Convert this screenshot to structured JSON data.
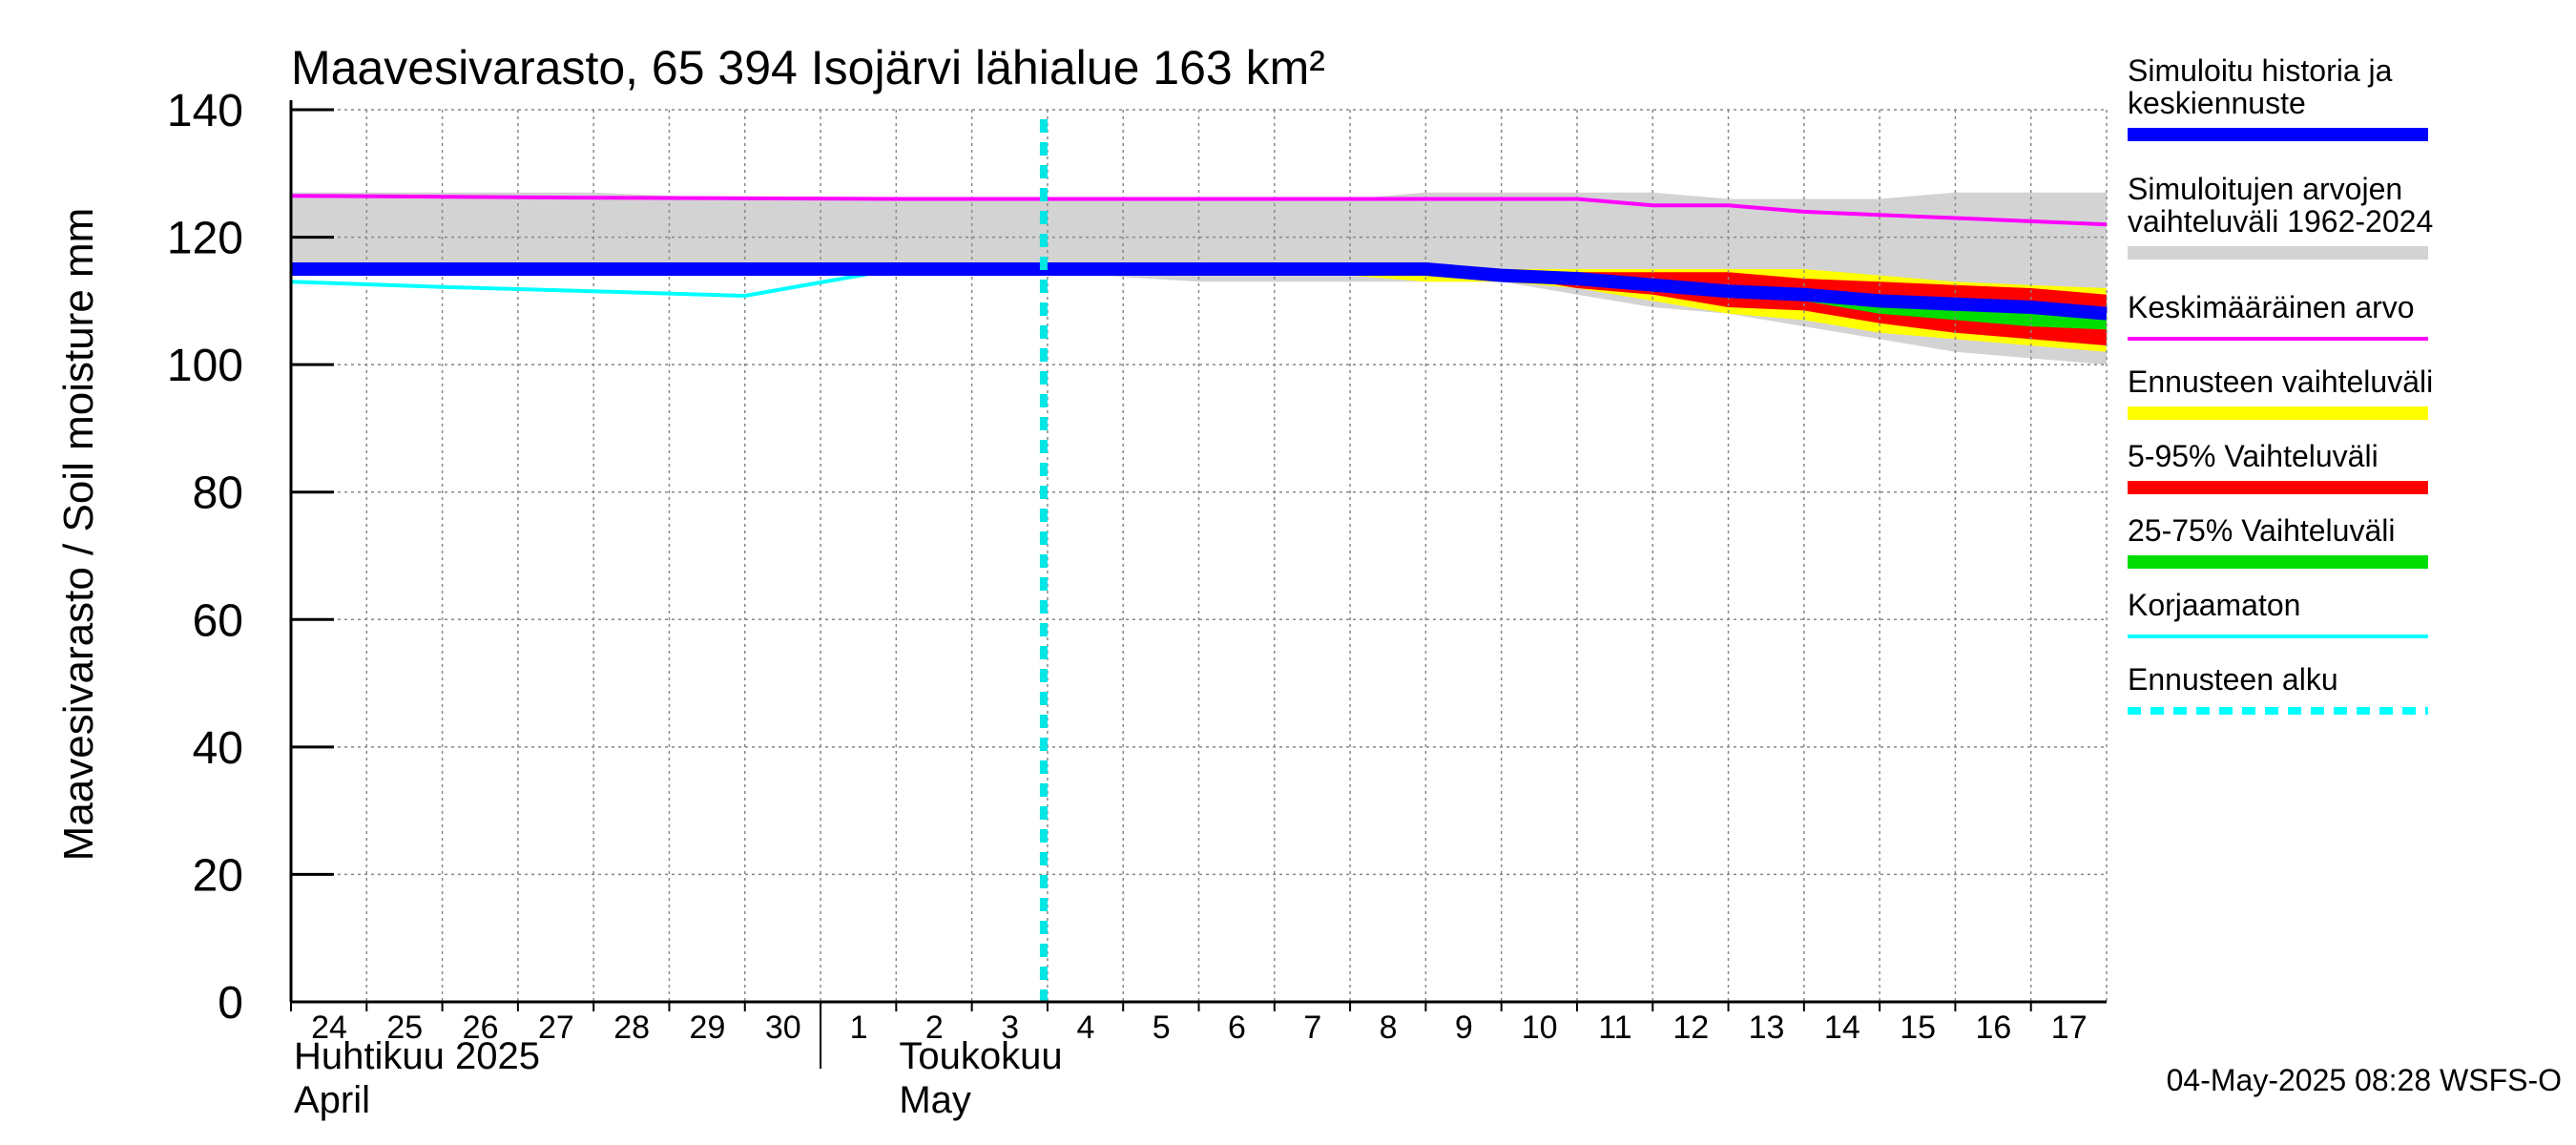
{
  "chart_data": {
    "type": "area",
    "title": "Maavesivarasto, 65 394 Isojärvi lähialue 163 km²",
    "ylabel": "Maavesivarasto / Soil moisture   mm",
    "ylim": [
      0,
      140
    ],
    "yticks": [
      0,
      20,
      40,
      60,
      80,
      100,
      120,
      140
    ],
    "xlim": [
      0,
      24
    ],
    "x_ticks": [
      {
        "x": 0,
        "label": "24"
      },
      {
        "x": 1,
        "label": "25"
      },
      {
        "x": 2,
        "label": "26"
      },
      {
        "x": 3,
        "label": "27"
      },
      {
        "x": 4,
        "label": "28"
      },
      {
        "x": 5,
        "label": "29"
      },
      {
        "x": 6,
        "label": "30"
      },
      {
        "x": 7,
        "label": "1"
      },
      {
        "x": 8,
        "label": "2"
      },
      {
        "x": 9,
        "label": "3"
      },
      {
        "x": 10,
        "label": "4"
      },
      {
        "x": 11,
        "label": "5"
      },
      {
        "x": 12,
        "label": "6"
      },
      {
        "x": 13,
        "label": "7"
      },
      {
        "x": 14,
        "label": "8"
      },
      {
        "x": 15,
        "label": "9"
      },
      {
        "x": 16,
        "label": "10"
      },
      {
        "x": 17,
        "label": "11"
      },
      {
        "x": 18,
        "label": "12"
      },
      {
        "x": 19,
        "label": "13"
      },
      {
        "x": 20,
        "label": "14"
      },
      {
        "x": 21,
        "label": "15"
      },
      {
        "x": 22,
        "label": "16"
      },
      {
        "x": 23,
        "label": "17"
      }
    ],
    "month_boundary_x": 7,
    "month_labels": [
      {
        "x": 0,
        "fi": "Huhtikuu  2025",
        "en": "April"
      },
      {
        "x": 8,
        "fi": "Toukokuu",
        "en": "May"
      }
    ],
    "forecast_start_x": 10,
    "grid": true,
    "series": [
      {
        "name": "Simuloitujen arvojen vaihteluväli 1962-2024",
        "role": "band",
        "color": "#d3d3d3",
        "x": [
          0,
          2,
          4,
          6,
          8,
          10,
          12,
          14,
          15,
          16,
          17,
          18,
          19,
          20,
          21,
          22,
          23,
          24
        ],
        "lower": [
          115,
          115,
          115,
          115,
          114.5,
          114.5,
          113,
          113,
          113,
          113,
          111,
          109,
          108,
          106,
          104,
          102,
          101,
          100
        ],
        "upper": [
          127,
          127,
          127,
          126,
          126,
          126,
          126,
          126,
          127,
          127,
          127,
          127,
          126,
          126,
          126,
          127,
          127,
          127
        ]
      },
      {
        "name": "Ennusteen vaihteluväli",
        "role": "band",
        "color": "#ffff00",
        "x": [
          10,
          12,
          14,
          15,
          16,
          17,
          18,
          19,
          20,
          21,
          22,
          23,
          24
        ],
        "lower": [
          115,
          114.5,
          114,
          113,
          113,
          112,
          110,
          108,
          107,
          105,
          104,
          103,
          102
        ],
        "upper": [
          115,
          115,
          115,
          115,
          115,
          115,
          115,
          115,
          115,
          114,
          113,
          112.5,
          112
        ]
      },
      {
        "name": "5-95% Vaihteluväli",
        "role": "band",
        "color": "#ff0000",
        "x": [
          10,
          12,
          14,
          15,
          16,
          17,
          18,
          19,
          20,
          21,
          22,
          23,
          24
        ],
        "lower": [
          115,
          115,
          115,
          114.5,
          114,
          112,
          111,
          109,
          108.5,
          106.5,
          105,
          104,
          103
        ],
        "upper": [
          115,
          115,
          115,
          115,
          114.5,
          114.5,
          114.5,
          114.5,
          113.5,
          113,
          112.5,
          112,
          111
        ]
      },
      {
        "name": "25-75% Vaihteluväli",
        "role": "band",
        "color": "#00dd00",
        "x": [
          10,
          12,
          14,
          15,
          16,
          17,
          18,
          19,
          20,
          21,
          22,
          23,
          24
        ],
        "lower": [
          115,
          115,
          115,
          114.5,
          114,
          113,
          112,
          111,
          110,
          108,
          107,
          106,
          105.5
        ],
        "upper": [
          115,
          115,
          115,
          115,
          114.5,
          114,
          113.5,
          112.5,
          111.5,
          110.5,
          110,
          109,
          108
        ]
      },
      {
        "name": "Keskimääräinen arvo",
        "role": "line",
        "color": "#ff00ff",
        "width": 4,
        "x": [
          0,
          4,
          8,
          12,
          16,
          17,
          18,
          19,
          20,
          21,
          22,
          23,
          24
        ],
        "y": [
          126.5,
          126.2,
          126,
          126,
          126,
          126,
          125,
          125,
          124,
          123.5,
          123,
          122.5,
          122
        ]
      },
      {
        "name": "Korjaamaton",
        "role": "line",
        "color": "#00ffff",
        "width": 4,
        "x": [
          0,
          2,
          4,
          6,
          8,
          10,
          12,
          14,
          15
        ],
        "y": [
          113,
          112.2,
          111.5,
          110.8,
          115,
          115.3,
          115.3,
          115.3,
          115.3
        ]
      },
      {
        "name": "Simuloitu historia ja keskiennuste",
        "role": "line",
        "color": "#0000ff",
        "width": 14,
        "x": [
          0,
          2,
          4,
          6,
          8,
          10,
          12,
          14,
          15,
          16,
          17,
          18,
          19,
          20,
          21,
          22,
          23,
          24
        ],
        "y": [
          115,
          115,
          115,
          115,
          115,
          115,
          115,
          115,
          115,
          114,
          113.5,
          112.5,
          111.5,
          111,
          110,
          109.5,
          109,
          108
        ]
      }
    ],
    "legend": [
      {
        "label": "Simuloitu historia ja\nkeskiennuste",
        "color": "#0000ff",
        "style": "solid"
      },
      {
        "label": "Simuloitujen arvojen\nvaihteluväli 1962-2024",
        "color": "#d3d3d3",
        "style": "solid"
      },
      {
        "label": "Keskimääräinen arvo",
        "color": "#ff00ff",
        "style": "thin"
      },
      {
        "label": "Ennusteen vaihteluväli",
        "color": "#ffff00",
        "style": "solid"
      },
      {
        "label": "5-95% Vaihteluväli",
        "color": "#ff0000",
        "style": "solid"
      },
      {
        "label": "25-75% Vaihteluväli",
        "color": "#00dd00",
        "style": "solid"
      },
      {
        "label": "Korjaamaton",
        "color": "#00ffff",
        "style": "thin"
      },
      {
        "label": "Ennusteen alku",
        "color": "#00ffff",
        "style": "dashed"
      }
    ],
    "legend_position": "right",
    "footer": "04-May-2025 08:28 WSFS-O"
  }
}
